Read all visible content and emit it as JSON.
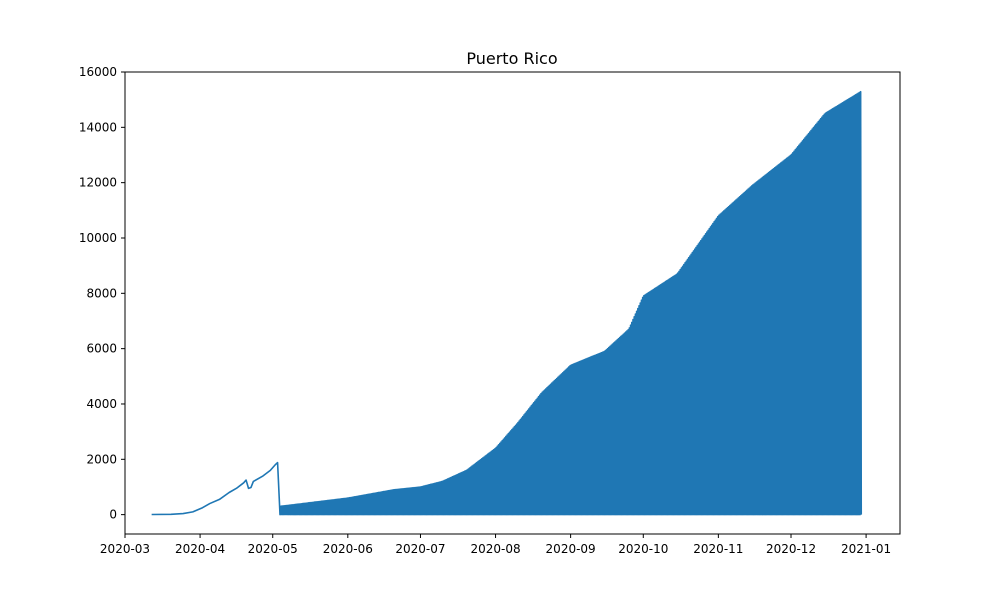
{
  "chart_data": {
    "type": "line",
    "title": "Puerto Rico",
    "xlabel": "",
    "ylabel": "",
    "x_axis": {
      "type": "date",
      "range": [
        "2020-03-01",
        "2021-01-15"
      ],
      "ticks": [
        "2020-03-01",
        "2020-04-01",
        "2020-05-01",
        "2020-06-01",
        "2020-07-01",
        "2020-08-01",
        "2020-09-01",
        "2020-10-01",
        "2020-11-01",
        "2020-12-01",
        "2021-01-01"
      ],
      "tick_labels": [
        "2020-03",
        "2020-04",
        "2020-05",
        "2020-06",
        "2020-07",
        "2020-08",
        "2020-09",
        "2020-10",
        "2020-11",
        "2020-12",
        "2021-01"
      ]
    },
    "y_axis": {
      "range": [
        -700,
        16000
      ],
      "ticks": [
        0,
        2000,
        4000,
        6000,
        8000,
        10000,
        12000,
        14000,
        16000
      ],
      "tick_labels": [
        "0",
        "2000",
        "4000",
        "6000",
        "8000",
        "10000",
        "12000",
        "14000",
        "16000"
      ]
    },
    "grid": false,
    "series": [
      {
        "color": "#1f77b4",
        "description_points": [
          [
            "2020-03-12",
            5
          ],
          [
            "2020-03-20",
            10
          ],
          [
            "2020-03-25",
            40
          ],
          [
            "2020-03-29",
            100
          ],
          [
            "2020-04-02",
            250
          ],
          [
            "2020-04-05",
            400
          ],
          [
            "2020-04-09",
            550
          ],
          [
            "2020-04-13",
            800
          ],
          [
            "2020-04-16",
            950
          ],
          [
            "2020-04-19",
            1150
          ],
          [
            "2020-04-20",
            1250
          ],
          [
            "2020-04-21",
            950
          ],
          [
            "2020-04-22",
            980
          ],
          [
            "2020-04-23",
            1200
          ],
          [
            "2020-04-27",
            1400
          ],
          [
            "2020-04-30",
            1600
          ],
          [
            "2020-05-02",
            1800
          ],
          [
            "2020-05-03",
            1880
          ],
          [
            "2020-05-04",
            0
          ]
        ],
        "oscillation": {
          "start": "2020-05-04",
          "end": "2020-12-30",
          "low": 0,
          "upper_envelope": [
            [
              "2020-05-04",
              300
            ],
            [
              "2020-06-01",
              600
            ],
            [
              "2020-06-20",
              900
            ],
            [
              "2020-07-01",
              1000
            ],
            [
              "2020-07-10",
              1200
            ],
            [
              "2020-07-20",
              1600
            ],
            [
              "2020-08-01",
              2400
            ],
            [
              "2020-08-10",
              3300
            ],
            [
              "2020-08-20",
              4400
            ],
            [
              "2020-09-01",
              5400
            ],
            [
              "2020-09-15",
              5900
            ],
            [
              "2020-09-25",
              6700
            ],
            [
              "2020-10-01",
              7900
            ],
            [
              "2020-10-15",
              8700
            ],
            [
              "2020-11-01",
              10800
            ],
            [
              "2020-11-15",
              11900
            ],
            [
              "2020-12-01",
              13000
            ],
            [
              "2020-12-15",
              14500
            ],
            [
              "2020-12-30",
              15300
            ]
          ]
        }
      }
    ]
  }
}
